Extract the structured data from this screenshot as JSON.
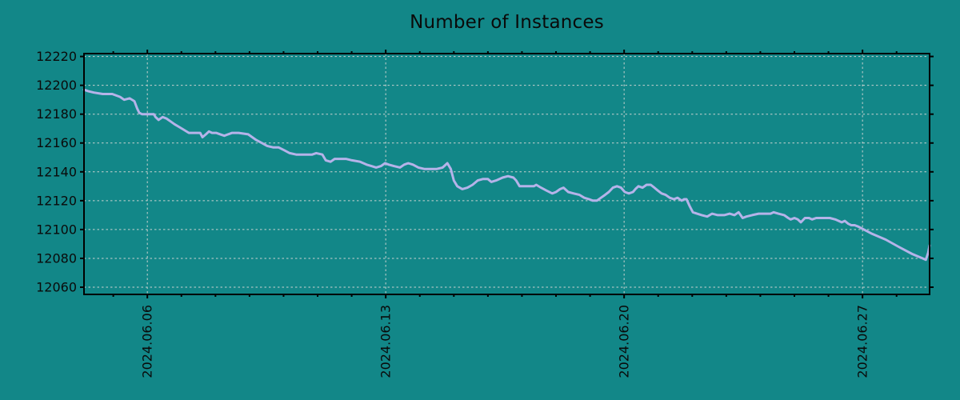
{
  "chart_data": {
    "type": "line",
    "title": "Number of Instances",
    "xlabel": "",
    "ylabel": "",
    "legend": "none",
    "grid": "dashed",
    "colors": {
      "background": "#128788",
      "line": "#b5b3e9",
      "grid_line": "#c9d2cf",
      "axis": "#000000",
      "text": "#0a0a0a"
    },
    "x_axis": {
      "unit": "days relative to 2024.06.06",
      "lim": [
        -1.86,
        22.97
      ],
      "major_ticks": [
        {
          "day": 0,
          "label": "2024.06.06"
        },
        {
          "day": 7,
          "label": "2024.06.13"
        },
        {
          "day": 14,
          "label": "2024.06.20"
        },
        {
          "day": 21,
          "label": "2024.06.27"
        }
      ],
      "minor_tick_interval_days": 1,
      "label_rotation_deg": -90
    },
    "y_axis": {
      "lim": [
        12055,
        12222
      ],
      "ticks": [
        12060,
        12080,
        12100,
        12120,
        12140,
        12160,
        12180,
        12200,
        12220
      ]
    },
    "series": [
      {
        "name": "instances",
        "points": [
          [
            -1.86,
            12197
          ],
          [
            -1.74,
            12196
          ],
          [
            -1.57,
            12195
          ],
          [
            -1.31,
            12194
          ],
          [
            -1.03,
            12194
          ],
          [
            -0.8,
            12192
          ],
          [
            -0.68,
            12190
          ],
          [
            -0.52,
            12191
          ],
          [
            -0.38,
            12189
          ],
          [
            -0.3,
            12184
          ],
          [
            -0.24,
            12181
          ],
          [
            -0.16,
            12180
          ],
          [
            0.19,
            12180
          ],
          [
            0.24,
            12178
          ],
          [
            0.33,
            12176
          ],
          [
            0.45,
            12178
          ],
          [
            0.56,
            12177
          ],
          [
            0.68,
            12175
          ],
          [
            0.8,
            12173
          ],
          [
            0.94,
            12171
          ],
          [
            1.08,
            12169
          ],
          [
            1.22,
            12167
          ],
          [
            1.39,
            12167
          ],
          [
            1.55,
            12167
          ],
          [
            1.62,
            12164
          ],
          [
            1.72,
            12166
          ],
          [
            1.81,
            12168
          ],
          [
            1.9,
            12167
          ],
          [
            2.02,
            12167
          ],
          [
            2.14,
            12166
          ],
          [
            2.26,
            12165
          ],
          [
            2.37,
            12166
          ],
          [
            2.49,
            12167
          ],
          [
            2.68,
            12167
          ],
          [
            2.96,
            12166
          ],
          [
            3.08,
            12164
          ],
          [
            3.2,
            12162
          ],
          [
            3.36,
            12160
          ],
          [
            3.52,
            12158
          ],
          [
            3.69,
            12157
          ],
          [
            3.85,
            12157
          ],
          [
            4.02,
            12155
          ],
          [
            4.18,
            12153
          ],
          [
            4.37,
            12152
          ],
          [
            4.6,
            12152
          ],
          [
            4.84,
            12152
          ],
          [
            4.96,
            12153
          ],
          [
            5.14,
            12152
          ],
          [
            5.24,
            12148
          ],
          [
            5.38,
            12147
          ],
          [
            5.5,
            12149
          ],
          [
            5.64,
            12149
          ],
          [
            5.83,
            12149
          ],
          [
            6.01,
            12148
          ],
          [
            6.25,
            12147
          ],
          [
            6.44,
            12145
          ],
          [
            6.58,
            12144
          ],
          [
            6.72,
            12143
          ],
          [
            6.86,
            12144
          ],
          [
            6.98,
            12146
          ],
          [
            7.09,
            12145
          ],
          [
            7.24,
            12144
          ],
          [
            7.42,
            12143
          ],
          [
            7.54,
            12145
          ],
          [
            7.66,
            12146
          ],
          [
            7.8,
            12145
          ],
          [
            7.96,
            12143
          ],
          [
            8.13,
            12142
          ],
          [
            8.29,
            12142
          ],
          [
            8.5,
            12142
          ],
          [
            8.67,
            12143
          ],
          [
            8.81,
            12146
          ],
          [
            8.91,
            12142
          ],
          [
            9.0,
            12134
          ],
          [
            9.1,
            12130
          ],
          [
            9.25,
            12128
          ],
          [
            9.4,
            12129
          ],
          [
            9.55,
            12131
          ],
          [
            9.7,
            12134
          ],
          [
            9.85,
            12135
          ],
          [
            10.0,
            12135
          ],
          [
            10.1,
            12133
          ],
          [
            10.24,
            12134
          ],
          [
            10.43,
            12136
          ],
          [
            10.59,
            12137
          ],
          [
            10.75,
            12136
          ],
          [
            10.83,
            12134
          ],
          [
            10.93,
            12130
          ],
          [
            11.1,
            12130
          ],
          [
            11.35,
            12130
          ],
          [
            11.42,
            12131
          ],
          [
            11.56,
            12129
          ],
          [
            11.72,
            12127
          ],
          [
            11.89,
            12125
          ],
          [
            12.0,
            12126
          ],
          [
            12.12,
            12128
          ],
          [
            12.22,
            12129
          ],
          [
            12.36,
            12126
          ],
          [
            12.52,
            12125
          ],
          [
            12.69,
            12124
          ],
          [
            12.83,
            12122
          ],
          [
            12.97,
            12121
          ],
          [
            13.08,
            12120
          ],
          [
            13.2,
            12120
          ],
          [
            13.32,
            12122
          ],
          [
            13.44,
            12124
          ],
          [
            13.55,
            12126
          ],
          [
            13.67,
            12129
          ],
          [
            13.79,
            12130
          ],
          [
            13.91,
            12129
          ],
          [
            14.02,
            12126
          ],
          [
            14.14,
            12125
          ],
          [
            14.26,
            12126
          ],
          [
            14.33,
            12128
          ],
          [
            14.42,
            12130
          ],
          [
            14.54,
            12129
          ],
          [
            14.66,
            12131
          ],
          [
            14.78,
            12131
          ],
          [
            14.89,
            12129
          ],
          [
            14.99,
            12127
          ],
          [
            15.1,
            12125
          ],
          [
            15.22,
            12124
          ],
          [
            15.34,
            12122
          ],
          [
            15.46,
            12121
          ],
          [
            15.57,
            12122
          ],
          [
            15.69,
            12120
          ],
          [
            15.76,
            12121
          ],
          [
            15.83,
            12121
          ],
          [
            15.93,
            12116
          ],
          [
            16.02,
            12112
          ],
          [
            16.14,
            12111
          ],
          [
            16.28,
            12110
          ],
          [
            16.44,
            12109
          ],
          [
            16.58,
            12111
          ],
          [
            16.75,
            12110
          ],
          [
            16.94,
            12110
          ],
          [
            17.1,
            12111
          ],
          [
            17.24,
            12110
          ],
          [
            17.36,
            12112
          ],
          [
            17.48,
            12108
          ],
          [
            17.59,
            12109
          ],
          [
            17.76,
            12110
          ],
          [
            17.95,
            12111
          ],
          [
            18.16,
            12111
          ],
          [
            18.3,
            12111
          ],
          [
            18.39,
            12112
          ],
          [
            18.53,
            12111
          ],
          [
            18.7,
            12110
          ],
          [
            18.82,
            12108
          ],
          [
            18.89,
            12107
          ],
          [
            19.0,
            12108
          ],
          [
            19.1,
            12107
          ],
          [
            19.19,
            12105
          ],
          [
            19.31,
            12108
          ],
          [
            19.43,
            12108
          ],
          [
            19.52,
            12107
          ],
          [
            19.64,
            12108
          ],
          [
            19.83,
            12108
          ],
          [
            20.04,
            12108
          ],
          [
            20.2,
            12107
          ],
          [
            20.3,
            12106
          ],
          [
            20.39,
            12105
          ],
          [
            20.48,
            12106
          ],
          [
            20.58,
            12104
          ],
          [
            20.67,
            12103
          ],
          [
            20.77,
            12103
          ],
          [
            20.88,
            12102
          ],
          [
            21.28,
            12097
          ],
          [
            21.68,
            12093
          ],
          [
            22.06,
            12088
          ],
          [
            22.46,
            12083
          ],
          [
            22.76,
            12080
          ],
          [
            22.86,
            12079
          ],
          [
            22.93,
            12084
          ],
          [
            22.97,
            12089
          ]
        ]
      }
    ]
  }
}
